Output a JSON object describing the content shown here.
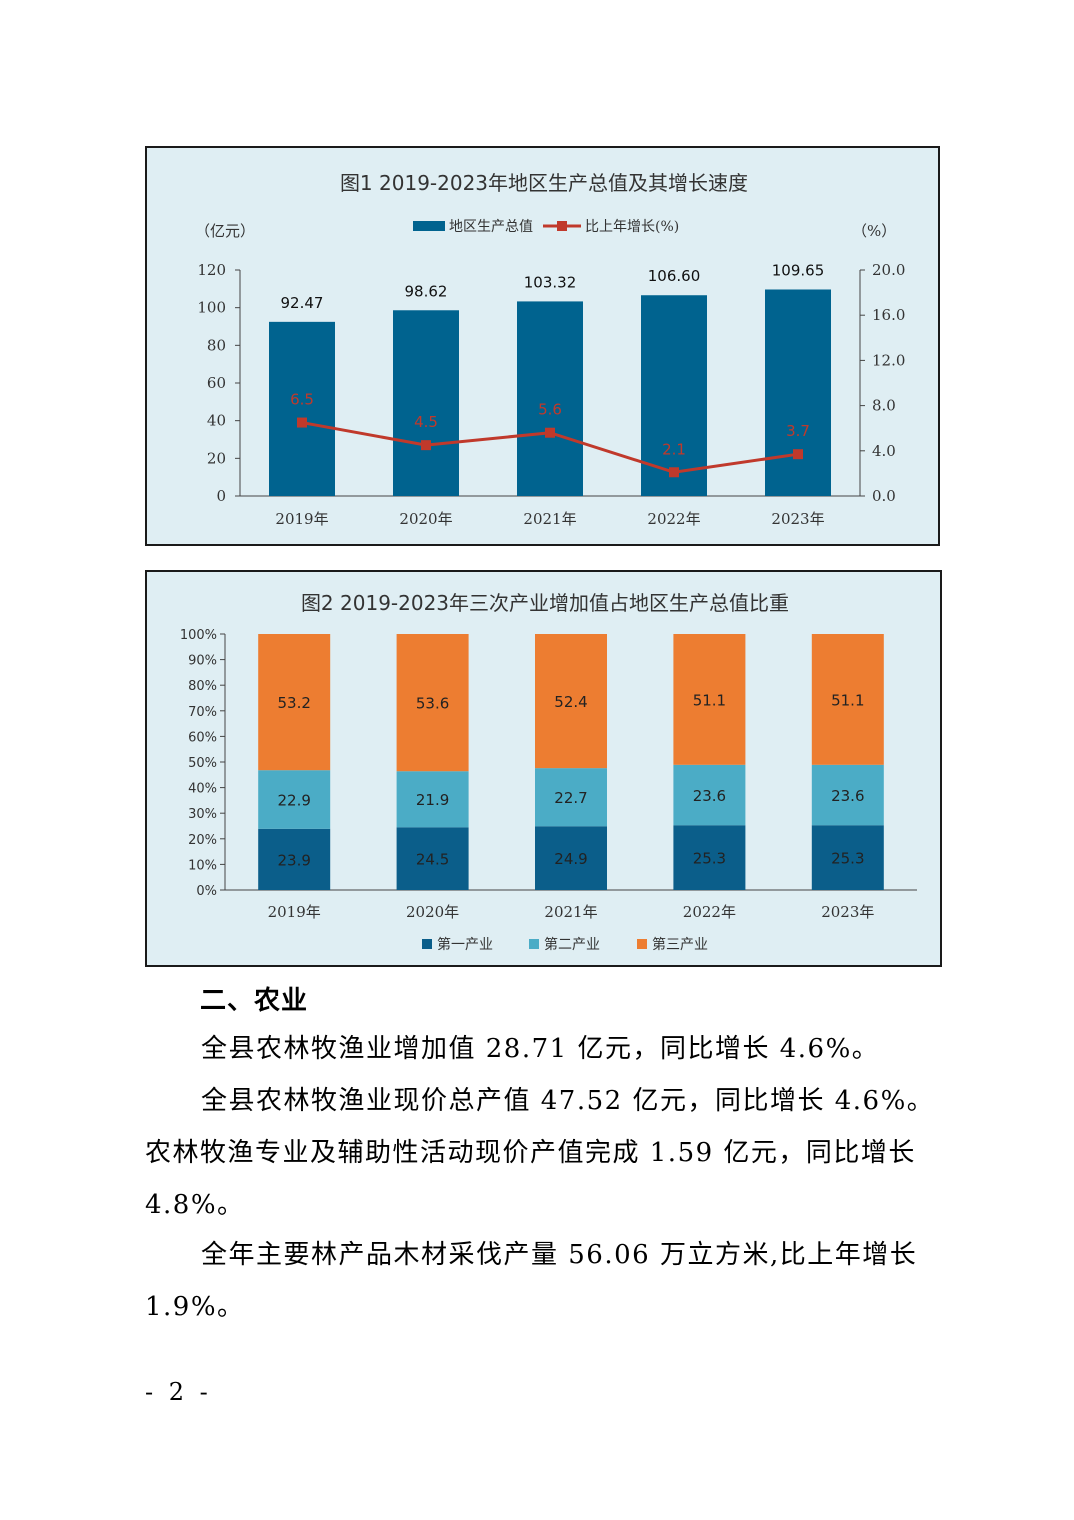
{
  "chart_data": [
    {
      "type": "bar+line",
      "title": "图1  2019-2023年地区生产总值及其增长速度",
      "left_unit": "（亿元）",
      "right_unit": "（%）",
      "legend": [
        "地区生产总值",
        "比上年增长(%)"
      ],
      "categories": [
        "2019年",
        "2020年",
        "2021年",
        "2022年",
        "2023年"
      ],
      "series": [
        {
          "name": "地区生产总值",
          "axis": "left",
          "values": [
            92.47,
            98.62,
            103.32,
            106.6,
            109.65
          ],
          "labels": [
            "92.47",
            "98.62",
            "103.32",
            "106.60",
            "109.65"
          ],
          "color": "#00638f"
        },
        {
          "name": "比上年增长(%)",
          "axis": "right",
          "values": [
            6.5,
            4.5,
            5.6,
            2.1,
            3.7
          ],
          "labels": [
            "6.5",
            "4.5",
            "5.6",
            "2.1",
            "3.7"
          ],
          "color": "#c0392b"
        }
      ],
      "ylim_left": [
        0,
        120
      ],
      "yticks_left": [
        "0",
        "20",
        "40",
        "60",
        "80",
        "100",
        "120"
      ],
      "ylim_right": [
        0,
        20
      ],
      "yticks_right": [
        "0.0",
        "4.0",
        "8.0",
        "12.0",
        "16.0",
        "20.0"
      ],
      "grid": false,
      "legend_position": "top"
    },
    {
      "type": "stacked-bar",
      "title": "图2 2019-2023年三次产业增加值占地区生产总值比重",
      "categories": [
        "2019年",
        "2020年",
        "2021年",
        "2022年",
        "2023年"
      ],
      "series": [
        {
          "name": "第一产业",
          "values": [
            23.9,
            24.5,
            24.9,
            25.3,
            25.3
          ],
          "labels": [
            "23.9",
            "24.5",
            "24.9",
            "25.3",
            "25.3"
          ],
          "color": "#0b5e8a"
        },
        {
          "name": "第二产业",
          "values": [
            22.9,
            21.9,
            22.7,
            23.6,
            23.6
          ],
          "labels": [
            "22.9",
            "21.9",
            "22.7",
            "23.6",
            "23.6"
          ],
          "color": "#4bacc6"
        },
        {
          "name": "第三产业",
          "values": [
            53.2,
            53.6,
            52.4,
            51.1,
            51.1
          ],
          "labels": [
            "53.2",
            "53.6",
            "52.4",
            "51.1",
            "51.1"
          ],
          "color": "#ed7d31"
        }
      ],
      "ylim": [
        0,
        100
      ],
      "yticks": [
        "0%",
        "10%",
        "20%",
        "30%",
        "40%",
        "50%",
        "60%",
        "70%",
        "80%",
        "90%",
        "100%"
      ],
      "grid": false,
      "legend_position": "bottom"
    }
  ],
  "section_heading": "二、农业",
  "paragraphs": [
    "全县农林牧渔业增加值 28.71 亿元，同比增长 4.6%。",
    "全县农林牧渔业现价总产值 47.52 亿元，同比增长 4.6%。农林牧渔专业及辅助性活动现价产值完成 1.59 亿元，同比增长 4.8%。",
    "全年主要林产品木材采伐产量 56.06 万立方米,比上年增长 1.9%。"
  ],
  "page_number": "- 2 -"
}
